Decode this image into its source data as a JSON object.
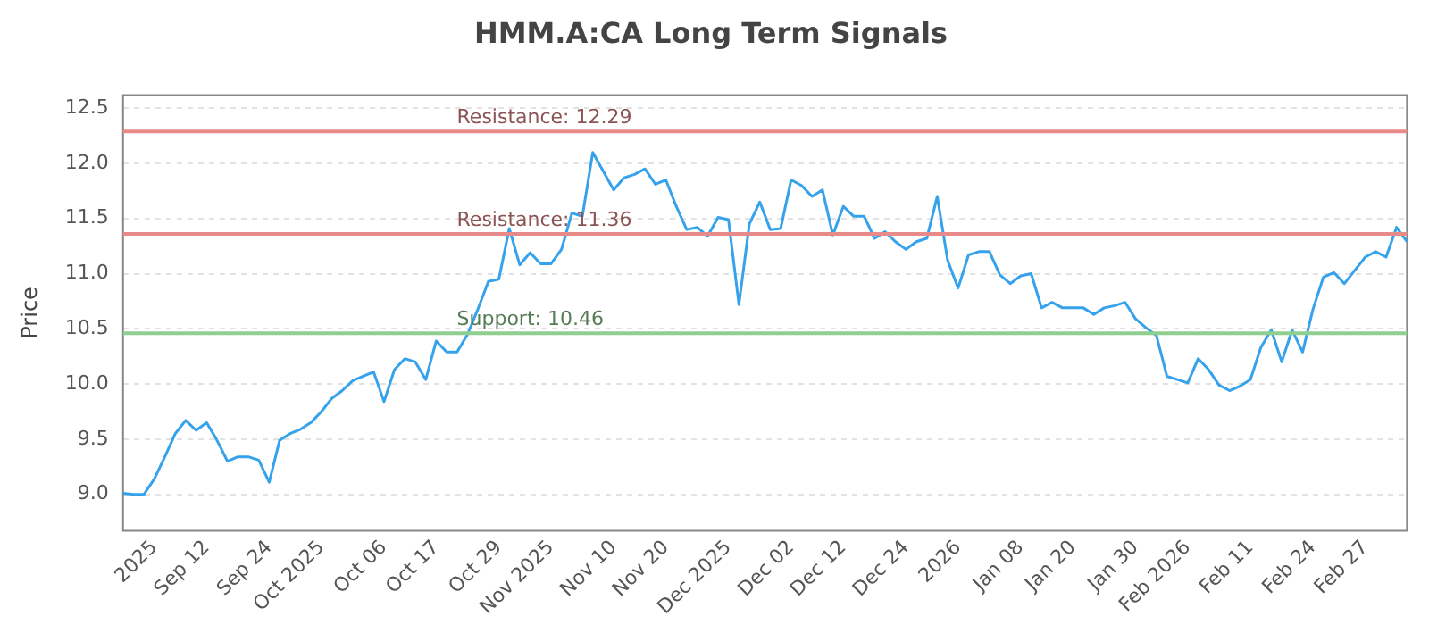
{
  "chart_data": {
    "type": "line",
    "title": "HMM.A:CA Long Term Signals",
    "ylabel": "Price",
    "categories": [
      null,
      null,
      null,
      "2025",
      null,
      null,
      null,
      null,
      "Sep 12",
      null,
      null,
      null,
      null,
      null,
      "Sep 24",
      null,
      null,
      null,
      null,
      "Oct 2025",
      null,
      null,
      null,
      null,
      null,
      "Oct 06",
      null,
      null,
      null,
      null,
      "Oct 17",
      null,
      null,
      null,
      null,
      null,
      "Oct 29",
      null,
      null,
      null,
      null,
      "Nov 2025",
      null,
      null,
      null,
      null,
      null,
      "Nov 10",
      null,
      null,
      null,
      null,
      "Nov 20",
      null,
      null,
      null,
      null,
      null,
      "Dec 2025",
      null,
      null,
      null,
      null,
      null,
      "Dec 02",
      null,
      null,
      null,
      null,
      "Dec 12",
      null,
      null,
      null,
      null,
      null,
      "Dec 24",
      null,
      null,
      null,
      null,
      "2026",
      null,
      null,
      null,
      null,
      null,
      "Jan 08",
      null,
      null,
      null,
      null,
      "Jan 20",
      null,
      null,
      null,
      null,
      null,
      "Jan 30",
      null,
      null,
      null,
      null,
      "Feb 2026",
      null,
      null,
      null,
      null,
      null,
      "Feb 11",
      null,
      null,
      null,
      null,
      null,
      "Feb 24",
      null,
      null,
      null,
      null,
      "Feb 27",
      null,
      null,
      null,
      null
    ],
    "series": [
      {
        "color": "#36a2eb",
        "values": [
          9.01,
          9.0,
          9.0,
          9.14,
          9.34,
          9.55,
          9.67,
          9.58,
          9.65,
          9.49,
          9.3,
          9.34,
          9.34,
          9.31,
          9.11,
          9.49,
          9.55,
          9.59,
          9.65,
          9.75,
          9.87,
          9.94,
          10.03,
          10.07,
          10.11,
          9.84,
          10.13,
          10.23,
          10.2,
          10.04,
          10.39,
          10.29,
          10.29,
          10.45,
          10.68,
          10.93,
          10.95,
          11.41,
          11.08,
          11.19,
          11.09,
          11.09,
          11.22,
          11.55,
          11.52,
          12.1,
          11.93,
          11.76,
          11.87,
          11.9,
          11.95,
          11.81,
          11.85,
          11.61,
          11.4,
          11.42,
          11.34,
          11.51,
          11.49,
          10.72,
          11.45,
          11.65,
          11.4,
          11.41,
          11.85,
          11.8,
          11.7,
          11.76,
          11.35,
          11.61,
          11.52,
          11.52,
          11.32,
          11.38,
          11.29,
          11.22,
          11.29,
          11.32,
          11.7,
          11.12,
          10.87,
          11.17,
          11.2,
          11.2,
          10.99,
          10.91,
          10.98,
          11.0,
          10.69,
          10.74,
          10.69,
          10.69,
          10.69,
          10.63,
          10.69,
          10.71,
          10.74,
          10.59,
          10.51,
          10.44,
          10.07,
          10.04,
          10.01,
          10.23,
          10.13,
          9.99,
          9.94,
          9.98,
          10.04,
          10.33,
          10.49,
          10.2,
          10.49,
          10.29,
          10.68,
          10.97,
          11.01,
          10.91,
          11.03,
          11.15,
          11.2,
          11.15,
          11.42,
          11.29
        ]
      }
    ],
    "ylim": [
      8.67,
      12.62
    ],
    "yticks": [
      {
        "value": 9,
        "label": "9.0"
      },
      {
        "value": 9.5,
        "label": "9.5"
      },
      {
        "value": 10,
        "label": "10.0"
      },
      {
        "value": 10.5,
        "label": "10.5"
      },
      {
        "value": 11,
        "label": "11.0"
      },
      {
        "value": 11.5,
        "label": "11.5"
      },
      {
        "value": 12,
        "label": "12.0"
      },
      {
        "value": 12.5,
        "label": "12.5"
      }
    ],
    "grid": "y",
    "marker": "none",
    "line_style": "solid",
    "legend": false,
    "ref_lines": [
      {
        "axis": "y",
        "value": 12.29,
        "label": "Resistance: 12.29",
        "color": "#e88a8a"
      },
      {
        "axis": "y",
        "value": 11.36,
        "label": "Resistance: 11.36",
        "color": "#e88a8a"
      },
      {
        "axis": "y",
        "value": 10.46,
        "label": "Support: 10.46",
        "color": "#8fcf8f"
      }
    ]
  }
}
